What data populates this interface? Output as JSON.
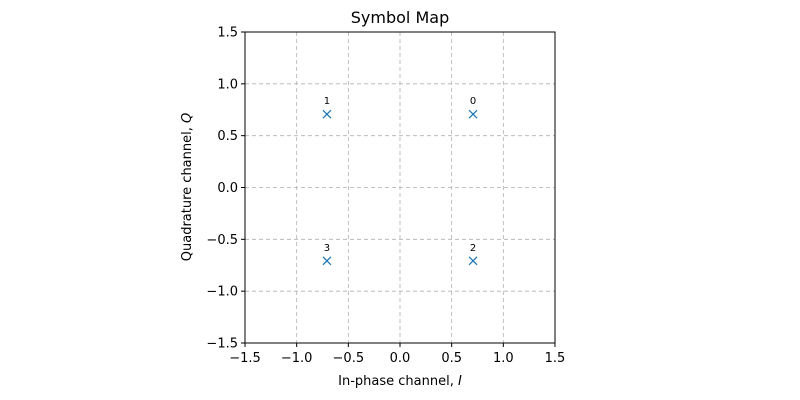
{
  "chart_data": {
    "type": "scatter",
    "title": "Symbol Map",
    "xlabel": "In-phase channel, ",
    "xlabel_var": "I",
    "ylabel": "Quadrature channel, ",
    "ylabel_var": "Q",
    "xlim": [
      -1.5,
      1.5
    ],
    "ylim": [
      -1.5,
      1.5
    ],
    "xticks": [
      -1.5,
      -1.0,
      -0.5,
      0.0,
      0.5,
      1.0,
      1.5
    ],
    "yticks": [
      -1.5,
      -1.0,
      -0.5,
      0.0,
      0.5,
      1.0,
      1.5
    ],
    "xtick_labels": [
      "−1.5",
      "−1.0",
      "−0.5",
      "0.0",
      "0.5",
      "1.0",
      "1.5"
    ],
    "ytick_labels": [
      "−1.5",
      "−1.0",
      "−0.5",
      "0.0",
      "0.5",
      "1.0",
      "1.5"
    ],
    "grid": true,
    "marker": "x",
    "color": "#1f77b4",
    "points": [
      {
        "label": "0",
        "x": 0.707,
        "y": 0.707
      },
      {
        "label": "1",
        "x": -0.707,
        "y": 0.707
      },
      {
        "label": "2",
        "x": 0.707,
        "y": -0.707
      },
      {
        "label": "3",
        "x": -0.707,
        "y": -0.707
      }
    ]
  }
}
